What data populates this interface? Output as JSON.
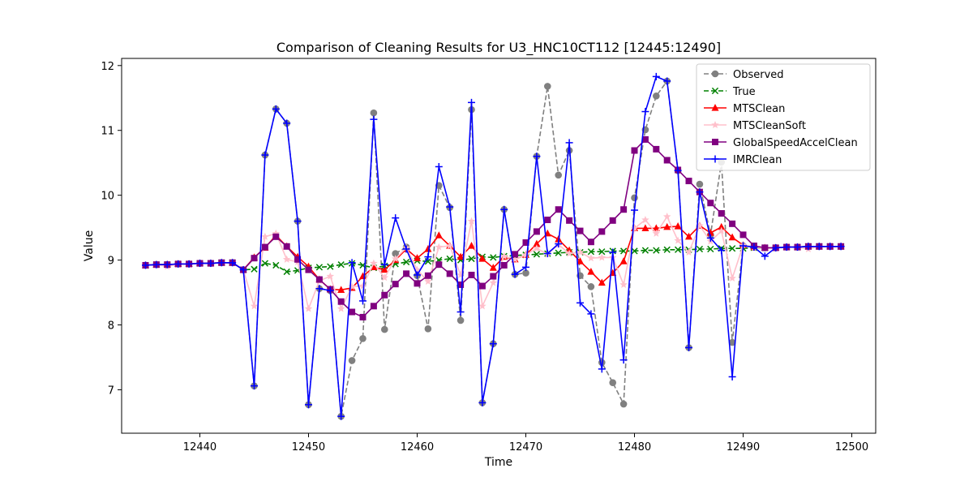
{
  "chart_data": {
    "type": "line",
    "title": "Comparison of Cleaning Results for U3_HNC10CT112 [12445:12490]",
    "xlabel": "Time",
    "ylabel": "Value",
    "xlim": [
      12432.8,
      12502.2
    ],
    "ylim": [
      6.33,
      12.11
    ],
    "xticks": [
      12440,
      12450,
      12460,
      12470,
      12480,
      12490,
      12500
    ],
    "yticks": [
      7,
      8,
      9,
      10,
      11,
      12
    ],
    "grid": false,
    "legend_position": "top-right",
    "x": [
      12435,
      12436,
      12437,
      12438,
      12439,
      12440,
      12441,
      12442,
      12443,
      12444,
      12445,
      12446,
      12447,
      12448,
      12449,
      12450,
      12451,
      12452,
      12453,
      12454,
      12455,
      12456,
      12457,
      12458,
      12459,
      12460,
      12461,
      12462,
      12463,
      12464,
      12465,
      12466,
      12467,
      12468,
      12469,
      12470,
      12471,
      12472,
      12473,
      12474,
      12475,
      12476,
      12477,
      12478,
      12479,
      12480,
      12481,
      12482,
      12483,
      12484,
      12485,
      12486,
      12487,
      12488,
      12489,
      12490,
      12491,
      12492,
      12493,
      12494,
      12495,
      12496,
      12497,
      12498,
      12499
    ],
    "series": [
      {
        "name": "Observed",
        "color": "#808080",
        "linestyle": "dashed",
        "marker": "circle",
        "values": [
          8.92,
          8.93,
          8.93,
          8.94,
          8.94,
          8.95,
          8.95,
          8.96,
          8.96,
          8.85,
          7.06,
          10.62,
          11.33,
          11.11,
          9.6,
          6.77,
          8.56,
          8.53,
          6.59,
          7.45,
          7.79,
          11.27,
          7.93,
          9.1,
          9.2,
          8.76,
          7.94,
          10.15,
          9.81,
          8.07,
          11.32,
          6.8,
          7.71,
          9.78,
          8.78,
          8.8,
          10.6,
          11.68,
          10.31,
          10.69,
          8.76,
          8.59,
          7.42,
          7.11,
          6.78,
          9.96,
          11.01,
          11.53,
          11.76,
          10.38,
          7.65,
          10.17,
          9.39,
          10.51,
          7.73,
          9.22,
          9.2,
          9.19,
          9.19,
          9.2,
          9.2,
          9.21,
          9.21,
          9.21,
          9.21
        ]
      },
      {
        "name": "True",
        "color": "#008000",
        "linestyle": "dashed",
        "marker": "x",
        "values": [
          8.92,
          8.93,
          8.93,
          8.94,
          8.94,
          8.95,
          8.95,
          8.96,
          8.96,
          8.85,
          8.86,
          8.95,
          8.92,
          8.82,
          8.84,
          8.88,
          8.89,
          8.9,
          8.93,
          8.95,
          8.92,
          8.88,
          8.91,
          8.94,
          8.97,
          8.99,
          8.98,
          9.0,
          9.02,
          9.0,
          9.02,
          9.05,
          9.04,
          9.06,
          9.07,
          9.08,
          9.09,
          9.1,
          9.11,
          9.12,
          9.12,
          9.13,
          9.13,
          9.14,
          9.14,
          9.14,
          9.15,
          9.15,
          9.16,
          9.16,
          9.16,
          9.17,
          9.17,
          9.18,
          9.18,
          9.18,
          9.19,
          9.19,
          9.19,
          9.2,
          9.2,
          9.21,
          9.21,
          9.21,
          9.21
        ]
      },
      {
        "name": "MTSClean",
        "color": "#ff0000",
        "linestyle": "solid",
        "marker": "triangle",
        "values": [
          8.92,
          8.93,
          8.93,
          8.94,
          8.94,
          8.95,
          8.95,
          8.96,
          8.96,
          8.85,
          9.04,
          9.19,
          9.38,
          9.21,
          9.05,
          8.9,
          8.7,
          8.55,
          8.54,
          8.57,
          8.75,
          8.89,
          8.85,
          9.0,
          9.17,
          9.03,
          9.17,
          9.38,
          9.22,
          9.05,
          9.22,
          9.02,
          8.88,
          9.05,
          9.01,
          9.08,
          9.25,
          9.41,
          9.32,
          9.15,
          8.98,
          8.82,
          8.65,
          8.8,
          8.98,
          9.49,
          9.49,
          9.49,
          9.51,
          9.52,
          9.36,
          9.53,
          9.42,
          9.51,
          9.35,
          9.23,
          9.2,
          9.19,
          9.19,
          9.2,
          9.2,
          9.21,
          9.21,
          9.21,
          9.21
        ]
      },
      {
        "name": "MTSCleanSoft",
        "color": "#ffc0cb",
        "linestyle": "solid",
        "marker": "star",
        "values": [
          8.92,
          8.93,
          8.9,
          8.94,
          8.94,
          8.95,
          8.95,
          8.96,
          8.96,
          8.85,
          8.29,
          9.36,
          9.41,
          9.01,
          8.97,
          8.25,
          8.68,
          8.75,
          8.25,
          8.59,
          8.6,
          8.95,
          8.73,
          9.02,
          9.19,
          8.85,
          8.67,
          9.2,
          9.22,
          8.77,
          9.6,
          8.29,
          8.65,
          9.06,
          9.01,
          9.08,
          9.18,
          9.09,
          9.24,
          9.1,
          9.12,
          9.03,
          9.04,
          9.04,
          8.62,
          9.49,
          9.62,
          9.41,
          9.67,
          9.3,
          9.12,
          9.53,
          9.29,
          9.45,
          8.72,
          9.23,
          9.2,
          9.19,
          9.19,
          9.2,
          9.2,
          9.17,
          9.21,
          9.21,
          9.21
        ]
      },
      {
        "name": "GlobalSpeedAccelClean",
        "color": "#800080",
        "linestyle": "solid",
        "marker": "square",
        "values": [
          8.92,
          8.93,
          8.93,
          8.94,
          8.94,
          8.95,
          8.95,
          8.96,
          8.96,
          8.85,
          9.03,
          9.2,
          9.36,
          9.21,
          9.01,
          8.85,
          8.7,
          8.55,
          8.36,
          8.2,
          8.12,
          8.29,
          8.46,
          8.63,
          8.79,
          8.64,
          8.76,
          8.93,
          8.79,
          8.62,
          8.77,
          8.6,
          8.75,
          8.92,
          9.09,
          9.27,
          9.44,
          9.62,
          9.78,
          9.61,
          9.45,
          9.28,
          9.44,
          9.61,
          9.78,
          10.69,
          10.86,
          10.71,
          10.54,
          10.39,
          10.22,
          10.05,
          9.88,
          9.72,
          9.56,
          9.39,
          9.22,
          9.19,
          9.19,
          9.2,
          9.2,
          9.21,
          9.21,
          9.21,
          9.21
        ]
      },
      {
        "name": "IMRClean",
        "color": "#0000ff",
        "linestyle": "solid",
        "marker": "plus",
        "values": [
          8.92,
          8.93,
          8.93,
          8.94,
          8.94,
          8.95,
          8.95,
          8.96,
          8.96,
          8.85,
          7.06,
          10.62,
          11.33,
          11.11,
          9.6,
          6.77,
          8.56,
          8.53,
          6.59,
          8.96,
          8.37,
          11.17,
          8.93,
          9.65,
          9.17,
          8.77,
          9.05,
          10.44,
          9.82,
          8.2,
          11.43,
          6.8,
          7.71,
          9.78,
          8.78,
          8.89,
          10.6,
          9.1,
          9.25,
          10.81,
          8.34,
          8.17,
          7.32,
          9.12,
          7.46,
          9.77,
          11.29,
          11.83,
          11.76,
          10.38,
          7.65,
          10.05,
          9.34,
          9.15,
          7.2,
          9.22,
          9.2,
          9.06,
          9.19,
          9.2,
          9.2,
          9.21,
          9.21,
          9.21,
          9.21
        ]
      }
    ]
  }
}
